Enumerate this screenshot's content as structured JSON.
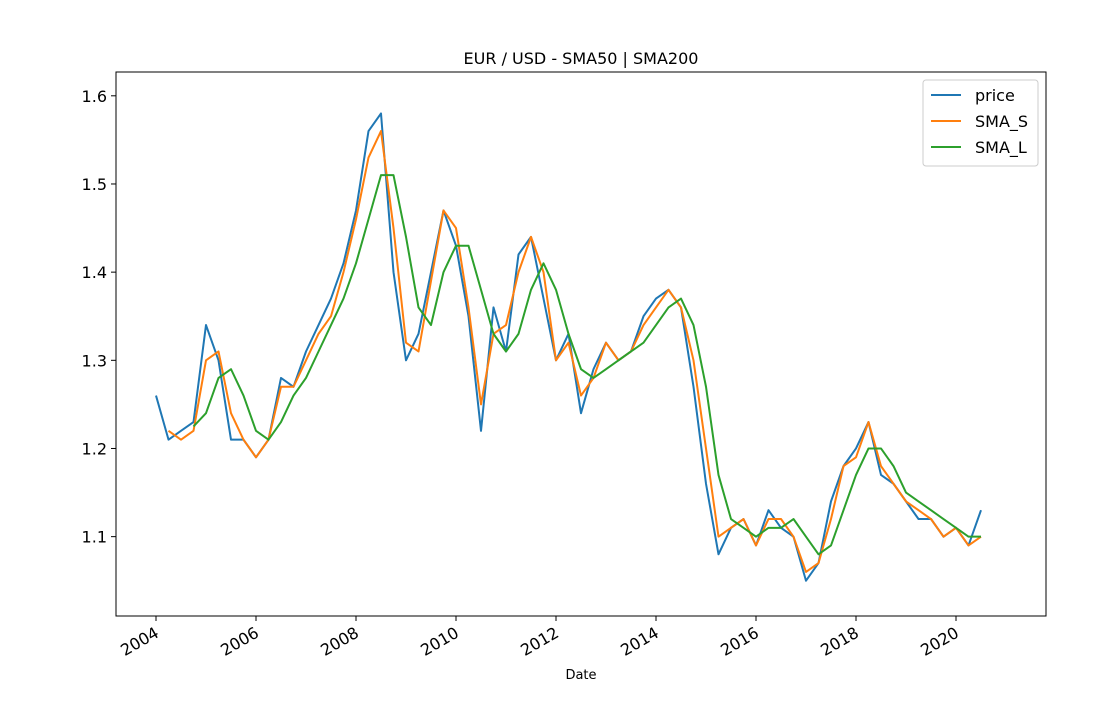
{
  "chart_data": {
    "type": "line",
    "title": "EUR / USD - SMA50 | SMA200",
    "x_label": "Date",
    "x": [
      2004.0,
      2004.25,
      2004.5,
      2004.75,
      2005.0,
      2005.25,
      2005.5,
      2005.75,
      2006.0,
      2006.25,
      2006.5,
      2006.75,
      2007.0,
      2007.25,
      2007.5,
      2007.75,
      2008.0,
      2008.25,
      2008.5,
      2008.75,
      2009.0,
      2009.25,
      2009.5,
      2009.75,
      2010.0,
      2010.25,
      2010.5,
      2010.75,
      2011.0,
      2011.25,
      2011.5,
      2011.75,
      2012.0,
      2012.25,
      2012.5,
      2012.75,
      2013.0,
      2013.25,
      2013.5,
      2013.75,
      2014.0,
      2014.25,
      2014.5,
      2014.75,
      2015.0,
      2015.25,
      2015.5,
      2015.75,
      2016.0,
      2016.25,
      2016.5,
      2016.75,
      2017.0,
      2017.25,
      2017.5,
      2017.75,
      2018.0,
      2018.25,
      2018.5,
      2018.75,
      2019.0,
      2019.25,
      2019.5,
      2019.75,
      2020.0,
      2020.25,
      2020.5
    ],
    "series": [
      {
        "name": "price",
        "color": "#1f77b4",
        "values": [
          1.26,
          1.21,
          1.22,
          1.23,
          1.34,
          1.3,
          1.21,
          1.21,
          1.19,
          1.21,
          1.28,
          1.27,
          1.31,
          1.34,
          1.37,
          1.41,
          1.47,
          1.56,
          1.58,
          1.4,
          1.3,
          1.33,
          1.4,
          1.47,
          1.43,
          1.35,
          1.22,
          1.36,
          1.31,
          1.42,
          1.44,
          1.37,
          1.3,
          1.33,
          1.24,
          1.29,
          1.32,
          1.3,
          1.31,
          1.35,
          1.37,
          1.38,
          1.36,
          1.27,
          1.16,
          1.08,
          1.11,
          1.12,
          1.09,
          1.13,
          1.11,
          1.1,
          1.05,
          1.07,
          1.14,
          1.18,
          1.2,
          1.23,
          1.17,
          1.16,
          1.14,
          1.12,
          1.12,
          1.1,
          1.11,
          1.09,
          1.13
        ]
      },
      {
        "name": "SMA_S",
        "color": "#ff7f0e",
        "values": [
          null,
          1.22,
          1.21,
          1.22,
          1.3,
          1.31,
          1.24,
          1.21,
          1.19,
          1.21,
          1.27,
          1.27,
          1.3,
          1.33,
          1.35,
          1.4,
          1.46,
          1.53,
          1.56,
          1.45,
          1.32,
          1.31,
          1.39,
          1.47,
          1.45,
          1.36,
          1.25,
          1.33,
          1.34,
          1.4,
          1.44,
          1.4,
          1.3,
          1.32,
          1.26,
          1.28,
          1.32,
          1.3,
          1.31,
          1.34,
          1.36,
          1.38,
          1.36,
          1.3,
          1.2,
          1.1,
          1.11,
          1.12,
          1.09,
          1.12,
          1.12,
          1.1,
          1.06,
          1.07,
          1.12,
          1.18,
          1.19,
          1.23,
          1.18,
          1.16,
          1.14,
          1.13,
          1.12,
          1.1,
          1.11,
          1.09,
          1.1
        ]
      },
      {
        "name": "SMA_L",
        "color": "#2ca02c",
        "values": [
          null,
          null,
          null,
          1.225,
          1.24,
          1.28,
          1.29,
          1.26,
          1.22,
          1.21,
          1.23,
          1.26,
          1.28,
          1.31,
          1.34,
          1.37,
          1.41,
          1.46,
          1.51,
          1.51,
          1.44,
          1.36,
          1.34,
          1.4,
          1.43,
          1.43,
          1.38,
          1.33,
          1.31,
          1.33,
          1.38,
          1.41,
          1.38,
          1.33,
          1.29,
          1.28,
          1.29,
          1.3,
          1.31,
          1.32,
          1.34,
          1.36,
          1.37,
          1.34,
          1.27,
          1.17,
          1.12,
          1.11,
          1.1,
          1.11,
          1.11,
          1.12,
          1.1,
          1.08,
          1.09,
          1.13,
          1.17,
          1.2,
          1.2,
          1.18,
          1.15,
          1.14,
          1.13,
          1.12,
          1.11,
          1.1,
          1.1
        ]
      }
    ],
    "xlim": [
      2003.2,
      2021.8
    ],
    "xticks": [
      2004,
      2006,
      2008,
      2010,
      2012,
      2014,
      2016,
      2018,
      2020
    ],
    "ylim": [
      1.01,
      1.627
    ],
    "yticks": [
      1.1,
      1.2,
      1.3,
      1.4,
      1.5,
      1.6
    ],
    "legend": "upper right"
  }
}
